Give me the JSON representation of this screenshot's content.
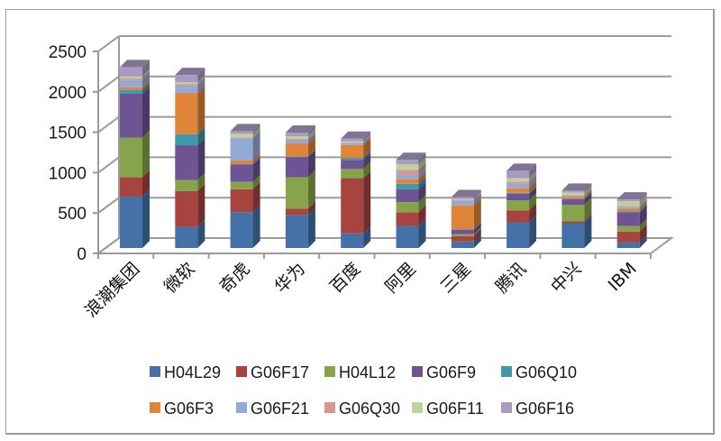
{
  "chart_data": {
    "type": "bar",
    "stacked": true,
    "style": "3d-stacked-column",
    "title": "",
    "xlabel": "",
    "ylabel": "",
    "ylim": [
      0,
      2500
    ],
    "yticks": [
      "0",
      "500",
      "1000",
      "1500",
      "2000",
      "2500"
    ],
    "grid": true,
    "legend_position": "bottom",
    "categories": [
      "浪潮集团",
      "微软",
      "奇虎",
      "华为",
      "百度",
      "阿里",
      "三星",
      "腾讯",
      "中兴",
      "IBM"
    ],
    "series": [
      {
        "name": "H04L29",
        "color": "#4472a8",
        "values": [
          636,
          261,
          443,
          409,
          182,
          273,
          80,
          318,
          307,
          68
        ]
      },
      {
        "name": "G06F17",
        "color": "#a84440",
        "values": [
          239,
          443,
          284,
          80,
          682,
          170,
          68,
          148,
          23,
          136
        ]
      },
      {
        "name": "H04L12",
        "color": "#88a44a",
        "values": [
          489,
          136,
          91,
          386,
          114,
          125,
          23,
          125,
          205,
          68
        ]
      },
      {
        "name": "G06F9",
        "color": "#6e5494",
        "values": [
          545,
          432,
          216,
          250,
          114,
          159,
          57,
          80,
          68,
          170
        ]
      },
      {
        "name": "G06Q10",
        "color": "#3e98ae",
        "values": [
          45,
          136,
          5,
          10,
          23,
          68,
          5,
          11,
          5,
          11
        ]
      },
      {
        "name": "G06F3",
        "color": "#e0843a",
        "values": [
          34,
          511,
          45,
          159,
          159,
          57,
          295,
          57,
          23,
          34
        ]
      },
      {
        "name": "G06F21",
        "color": "#93aad6",
        "values": [
          91,
          91,
          273,
          45,
          23,
          57,
          57,
          57,
          11,
          23
        ]
      },
      {
        "name": "G06Q30",
        "color": "#d99594",
        "values": [
          23,
          20,
          11,
          11,
          11,
          57,
          11,
          23,
          11,
          11
        ]
      },
      {
        "name": "G06F11",
        "color": "#bcd49c",
        "values": [
          23,
          20,
          45,
          34,
          11,
          68,
          11,
          45,
          34,
          57
        ]
      },
      {
        "name": "G06F16",
        "color": "#a99ac4",
        "values": [
          114,
          91,
          34,
          45,
          34,
          57,
          23,
          91,
          23,
          23
        ]
      }
    ]
  }
}
